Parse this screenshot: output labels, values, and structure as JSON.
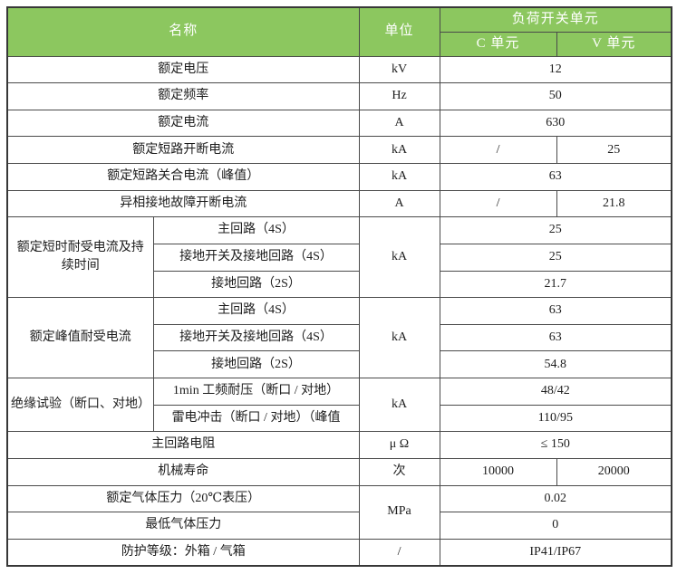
{
  "table": {
    "colors": {
      "header_bg": "#8cc75f",
      "header_text": "#ffffff",
      "border": "#4a4a4a",
      "body_text": "#1d1d1d"
    },
    "header": {
      "name": "名称",
      "unit": "单位",
      "group": "负荷开关单元",
      "col_c": "C 单元",
      "col_v": "V 单元"
    },
    "rows": {
      "r1": {
        "name": "额定电压",
        "unit": "kV",
        "value": "12"
      },
      "r2": {
        "name": "额定频率",
        "unit": "Hz",
        "value": "50"
      },
      "r3": {
        "name": "额定电流",
        "unit": "A",
        "value": "630"
      },
      "r4": {
        "name": "额定短路开断电流",
        "unit": "kA",
        "c": "/",
        "v": "25"
      },
      "r5": {
        "name": "额定短路关合电流（峰值）",
        "unit": "kA",
        "value": "63"
      },
      "r6": {
        "name": "异相接地故障开断电流",
        "unit": "A",
        "c": "/",
        "v": "21.8"
      },
      "g1": {
        "category": "额定短时耐受电流及持续时间",
        "unit": "kA",
        "sub1": "主回路（4S）",
        "val1": "25",
        "sub2": "接地开关及接地回路（4S）",
        "val2": "25",
        "sub3": "接地回路（2S）",
        "val3": "21.7"
      },
      "g2": {
        "category": "额定峰值耐受电流",
        "unit": "kA",
        "sub1": "主回路（4S）",
        "val1": "63",
        "sub2": "接地开关及接地回路（4S）",
        "val2": "63",
        "sub3": "接地回路（2S）",
        "val3": "54.8"
      },
      "g3": {
        "category": "绝缘试验（断口、对地）",
        "unit": "kA",
        "sub1": "1min 工频耐压（断口 / 对地）",
        "val1": "48/42",
        "sub2": "雷电冲击（断口 / 对地）（峰值",
        "val2": "110/95"
      },
      "r7": {
        "name": "主回路电阻",
        "unit": "μ Ω",
        "value": "≤ 150"
      },
      "r8": {
        "name": "机械寿命",
        "unit": "次",
        "c": "10000",
        "v": "20000"
      },
      "g4": {
        "unit": "MPa",
        "name1": "额定气体压力（20℃表压）",
        "val1": "0.02",
        "name2": "最低气体压力",
        "val2": "0"
      },
      "r9": {
        "name": "防护等级：外箱 / 气箱",
        "unit": "/",
        "value": "IP41/IP67"
      }
    }
  }
}
